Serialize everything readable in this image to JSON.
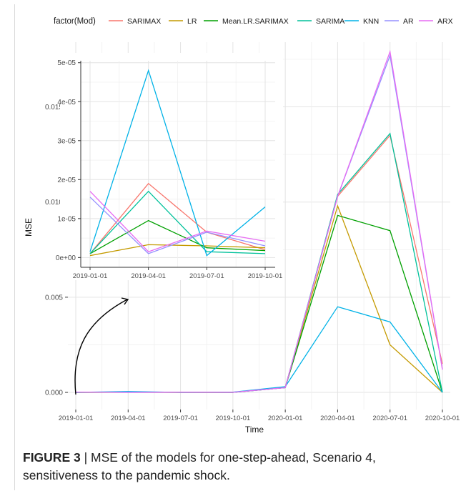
{
  "legend": {
    "title": "factor(Mod)",
    "placement": "top"
  },
  "caption": {
    "label": "FIGURE 3",
    "separator": " | ",
    "text": "MSE of the models for one-step-ahead, Scenario 4, sensitiveness to the pandemic shock."
  },
  "chart_data": [
    {
      "type": "line",
      "title": "",
      "xlabel": "Time",
      "ylabel": "MSE",
      "x": [
        "2019-01-01",
        "2019-04-01",
        "2019-07-01",
        "2019-10-01",
        "2020-01-01",
        "2020-04-01",
        "2020-07-01",
        "2020-10-01"
      ],
      "x_ticks": [
        "2019-01-01",
        "2019-04-01",
        "2019-07-01",
        "2019-10-01",
        "2020-01-01",
        "2020-04-01",
        "2020-07-01",
        "2020-10-01"
      ],
      "y_ticks": [
        "0.000",
        "0.005",
        "0.010",
        "0.015"
      ],
      "ylim": [
        -0.0009,
        0.0184
      ],
      "grid": true,
      "series": [
        {
          "name": "SARIMAX",
          "color": "#F8766D",
          "values": [
            1e-06,
            1.9e-05,
            6.5e-06,
            2e-06,
            0.00025,
            0.0103,
            0.0135,
            0.0015
          ]
        },
        {
          "name": "LR",
          "color": "#C49A00",
          "values": [
            5e-07,
            3.3e-06,
            3e-06,
            2.5e-06,
            0.00028,
            0.0098,
            0.0025,
            0.0
          ]
        },
        {
          "name": "Mean.LR.SARIMAX",
          "color": "#00A000",
          "values": [
            1e-06,
            9.5e-06,
            2.5e-06,
            1.8e-06,
            0.00025,
            0.0093,
            0.0085,
            0.0
          ]
        },
        {
          "name": "SARIMA",
          "color": "#00C19A",
          "values": [
            1e-06,
            1.7e-05,
            1.5e-06,
            1e-06,
            0.00025,
            0.0104,
            0.0136,
            0.0
          ]
        },
        {
          "name": "KNN",
          "color": "#00B2E7",
          "values": [
            1.5e-06,
            4.8e-05,
            5e-07,
            1.3e-05,
            0.0003,
            0.0045,
            0.0037,
            0.0
          ]
        },
        {
          "name": "AR",
          "color": "#9590FF",
          "values": [
            1.55e-05,
            1e-06,
            6.5e-06,
            3e-06,
            0.00025,
            0.0103,
            0.0177,
            0.0012
          ]
        },
        {
          "name": "ARX",
          "color": "#E76BF3",
          "values": [
            1.7e-05,
            1.5e-06,
            6.8e-06,
            4.2e-06,
            0.00025,
            0.0103,
            0.0179,
            0.0012
          ]
        }
      ]
    },
    {
      "type": "line",
      "title": "",
      "xlabel": "",
      "ylabel": "",
      "x": [
        "2019-01-01",
        "2019-04-01",
        "2019-07-01",
        "2019-10-01"
      ],
      "x_ticks": [
        "2019-01-01",
        "2019-04-01",
        "2019-07-01",
        "2019-10-01"
      ],
      "y_ticks": [
        "0e+00",
        "1e-05",
        "2e-05",
        "3e-05",
        "4e-05",
        "5e-05"
      ],
      "ylim": [
        -2.5e-06,
        5.05e-05
      ],
      "grid": true
    }
  ]
}
